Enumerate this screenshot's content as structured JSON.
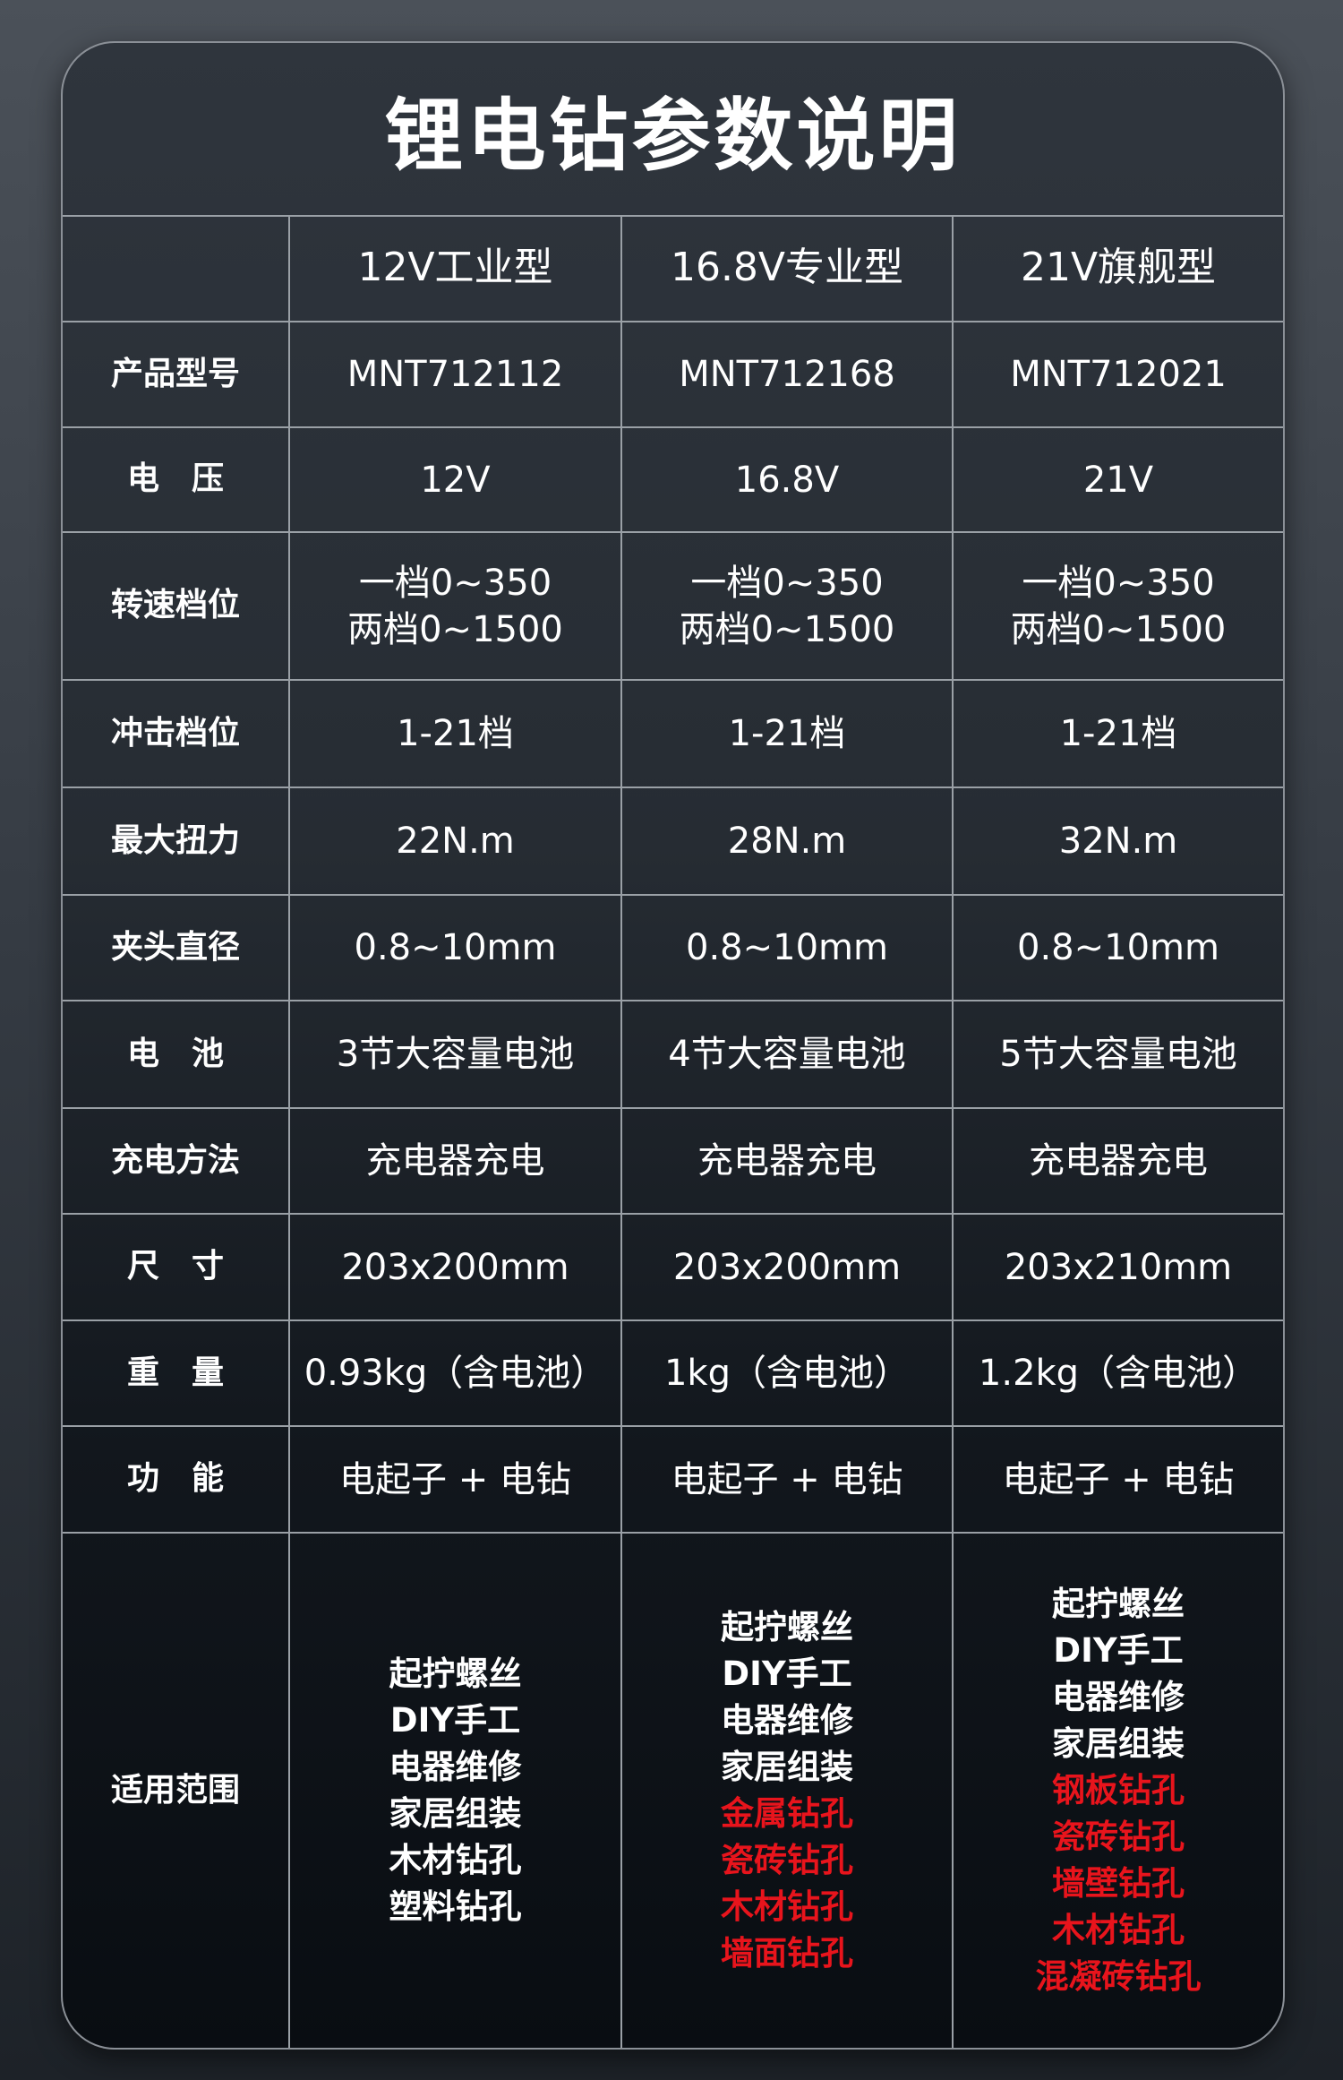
{
  "title": "锂电钻参数说明",
  "colors": {
    "accent_red": "#e8141c"
  },
  "columns": [
    "",
    "12V工业型",
    "16.8V专业型",
    "21V旗舰型"
  ],
  "rows": [
    {
      "label": "产品型号",
      "values": [
        "MNT712112",
        "MNT712168",
        "MNT712021"
      ]
    },
    {
      "label": "电　压",
      "values": [
        "12V",
        "16.8V",
        "21V"
      ]
    },
    {
      "label": "转速档位",
      "values": [
        "一档0~350\n两档0~1500",
        "一档0~350\n两档0~1500",
        "一档0~350\n两档0~1500"
      ]
    },
    {
      "label": "冲击档位",
      "values": [
        "1-21档",
        "1-21档",
        "1-21档"
      ]
    },
    {
      "label": "最大扭力",
      "values": [
        "22N.m",
        "28N.m",
        "32N.m"
      ]
    },
    {
      "label": "夹头直径",
      "values": [
        "0.8~10mm",
        "0.8~10mm",
        "0.8~10mm"
      ]
    },
    {
      "label": "电　池",
      "values": [
        "3节大容量电池",
        "4节大容量电池",
        "5节大容量电池"
      ]
    },
    {
      "label": "充电方法",
      "values": [
        "充电器充电",
        "充电器充电",
        "充电器充电"
      ]
    },
    {
      "label": "尺　寸",
      "values": [
        "203x200mm",
        "203x200mm",
        "203x210mm"
      ]
    },
    {
      "label": "重　量",
      "values": [
        "0.93kg（含电池）",
        "1kg（含电池）",
        "1.2kg（含电池）"
      ]
    },
    {
      "label": "功　能",
      "values": [
        "电起子 + 电钻",
        "电起子 + 电钻",
        "电起子 + 电钻"
      ]
    }
  ],
  "scope": {
    "label": "适用范围",
    "columns": [
      [
        {
          "text": "起拧螺丝",
          "highlight": false
        },
        {
          "text": "DIY手工",
          "highlight": false
        },
        {
          "text": "电器维修",
          "highlight": false
        },
        {
          "text": "家居组装",
          "highlight": false
        },
        {
          "text": "木材钻孔",
          "highlight": false
        },
        {
          "text": "塑料钻孔",
          "highlight": false
        }
      ],
      [
        {
          "text": "起拧螺丝",
          "highlight": false
        },
        {
          "text": "DIY手工",
          "highlight": false
        },
        {
          "text": "电器维修",
          "highlight": false
        },
        {
          "text": "家居组装",
          "highlight": false
        },
        {
          "text": "金属钻孔",
          "highlight": true
        },
        {
          "text": "瓷砖钻孔",
          "highlight": true
        },
        {
          "text": "木材钻孔",
          "highlight": true
        },
        {
          "text": "墙面钻孔",
          "highlight": true
        }
      ],
      [
        {
          "text": "起拧螺丝",
          "highlight": false
        },
        {
          "text": "DIY手工",
          "highlight": false
        },
        {
          "text": "电器维修",
          "highlight": false
        },
        {
          "text": "家居组装",
          "highlight": false
        },
        {
          "text": "钢板钻孔",
          "highlight": true
        },
        {
          "text": "瓷砖钻孔",
          "highlight": true
        },
        {
          "text": "墙壁钻孔",
          "highlight": true
        },
        {
          "text": "木材钻孔",
          "highlight": true
        },
        {
          "text": "混凝砖钻孔",
          "highlight": true
        }
      ]
    ]
  }
}
